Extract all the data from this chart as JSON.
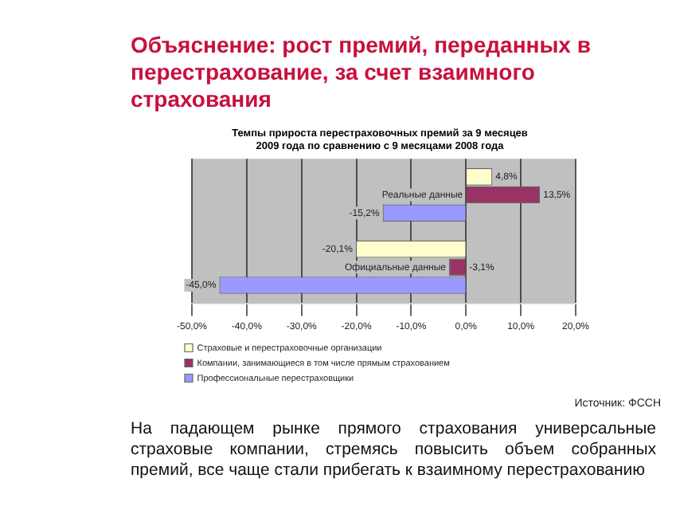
{
  "chart_data": {
    "type": "bar",
    "orientation": "horizontal",
    "title": "Объяснение: рост премий, переданных в перестрахование, за счет взаимного страхования",
    "subtitle": "Темпы прироста перестраховочных премий за 9 месяцев 2009 года по сравнению с 9 месяцами 2008 года",
    "categories": [
      "Реальные данные",
      "Официальные данные"
    ],
    "series": [
      {
        "name": "Страховые и перестраховочные организации",
        "color": "#ffffcc",
        "values": [
          4.8,
          -20.1
        ],
        "value_labels": [
          "4,8%",
          "-20,1%"
        ]
      },
      {
        "name": "Компании, занимающиеся в том числе прямым страхованием",
        "color": "#993366",
        "values": [
          13.5,
          -3.1
        ],
        "value_labels": [
          "13,5%",
          "-3,1%"
        ]
      },
      {
        "name": "Профессиональные перестраховщики",
        "color": "#9999ff",
        "values": [
          -15.2,
          -45.0
        ],
        "value_labels": [
          "-15,2%",
          "-45,0%"
        ]
      }
    ],
    "xlim": [
      -50,
      20
    ],
    "xticks": [
      {
        "value": -50,
        "label": "-50,0%"
      },
      {
        "value": -40,
        "label": "-40,0%"
      },
      {
        "value": -30,
        "label": "-30,0%"
      },
      {
        "value": -20,
        "label": "-20,0%"
      },
      {
        "value": -10,
        "label": "-10,0%"
      },
      {
        "value": 0,
        "label": "0,0%"
      },
      {
        "value": 10,
        "label": "10,0%"
      },
      {
        "value": 20,
        "label": "20,0%"
      }
    ],
    "grid": "x",
    "legend": "bottom",
    "annotations": [
      "Источник: ФССН",
      "На падающем рынке прямого страхования универсальные страховые компании, стремясь повысить объем собранных премий, все чаще стали прибегать к взаимному перестрахованию"
    ]
  }
}
